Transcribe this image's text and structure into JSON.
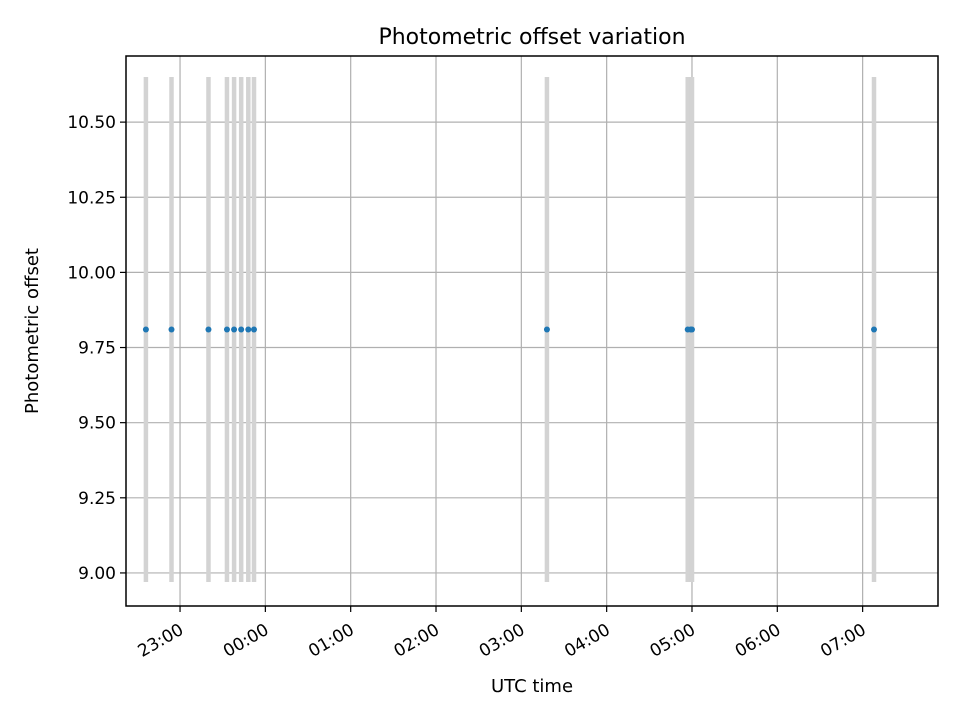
{
  "chart_data": {
    "type": "scatter",
    "title": "Photometric offset variation",
    "xlabel": "UTC time",
    "ylabel": "Photometric offset",
    "x_unit": "UTC time (HH:MM)",
    "xlim": [
      "22:22",
      "07:53"
    ],
    "ylim": [
      8.89,
      10.72
    ],
    "x_ticks": [
      "23:00",
      "00:00",
      "01:00",
      "02:00",
      "03:00",
      "04:00",
      "05:00",
      "06:00",
      "07:00"
    ],
    "y_ticks": [
      "9.00",
      "9.25",
      "9.50",
      "9.75",
      "10.00",
      "10.25",
      "10.50"
    ],
    "grid": true,
    "marker_color": "#1f77b4",
    "errorbar_color": "#d3d3d3",
    "series": [
      {
        "x": [
          "22:36",
          "22:54",
          "23:20",
          "23:33",
          "23:38",
          "23:43",
          "23:48",
          "23:52",
          "03:18",
          "04:57",
          "04:59",
          "05:00",
          "07:08"
        ],
        "y": [
          9.81,
          9.81,
          9.81,
          9.81,
          9.81,
          9.81,
          9.81,
          9.81,
          9.81,
          9.81,
          9.81,
          9.81,
          9.81
        ],
        "y_error": [
          0.84,
          0.84,
          0.84,
          0.84,
          0.84,
          0.84,
          0.84,
          0.84,
          0.84,
          0.84,
          0.84,
          0.84,
          0.84
        ]
      }
    ]
  }
}
